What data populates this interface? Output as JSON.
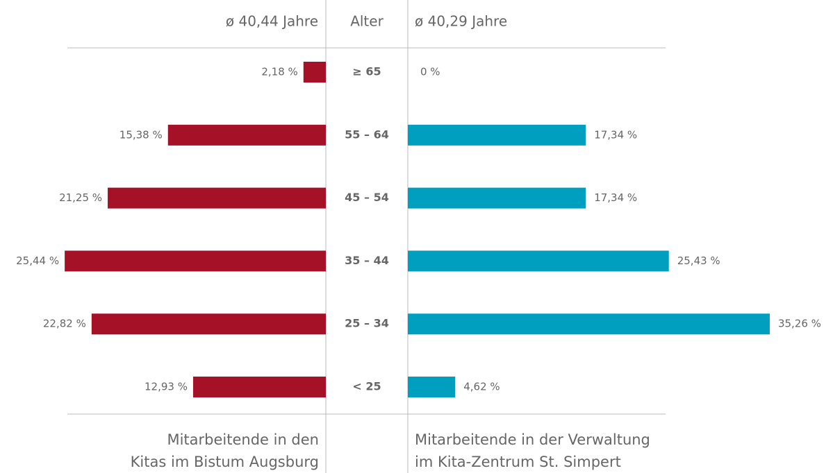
{
  "chart_data": {
    "type": "butterfly-bar",
    "axis_title": "Alter",
    "categories": [
      "≥ 65",
      "55 – 64",
      "45 – 54",
      "35 – 44",
      "25 – 34",
      "< 25"
    ],
    "xlim": [
      0,
      40
    ],
    "series": [
      {
        "name": "Mitarbeitende in den\nKitas im Bistum Augsburg",
        "subtitle": "ø 40,44 Jahre",
        "color": "#a51127",
        "values": [
          2.18,
          15.38,
          21.25,
          25.44,
          22.82,
          12.93
        ],
        "value_labels": [
          "2,18 %",
          "15,38 %",
          "21,25 %",
          "25,44 %",
          "22,82 %",
          "12,93 %"
        ]
      },
      {
        "name": "Mitarbeitende in der Verwaltung\nim Kita-Zentrum St. Simpert",
        "subtitle": "ø 40,29 Jahre",
        "color": "#009fbf",
        "values": [
          0,
          17.34,
          17.34,
          25.43,
          35.26,
          4.62
        ],
        "value_labels": [
          "0 %",
          "17,34 %",
          "17,34 %",
          "25,43 %",
          "35,26 %",
          "4,62 %"
        ]
      }
    ]
  }
}
